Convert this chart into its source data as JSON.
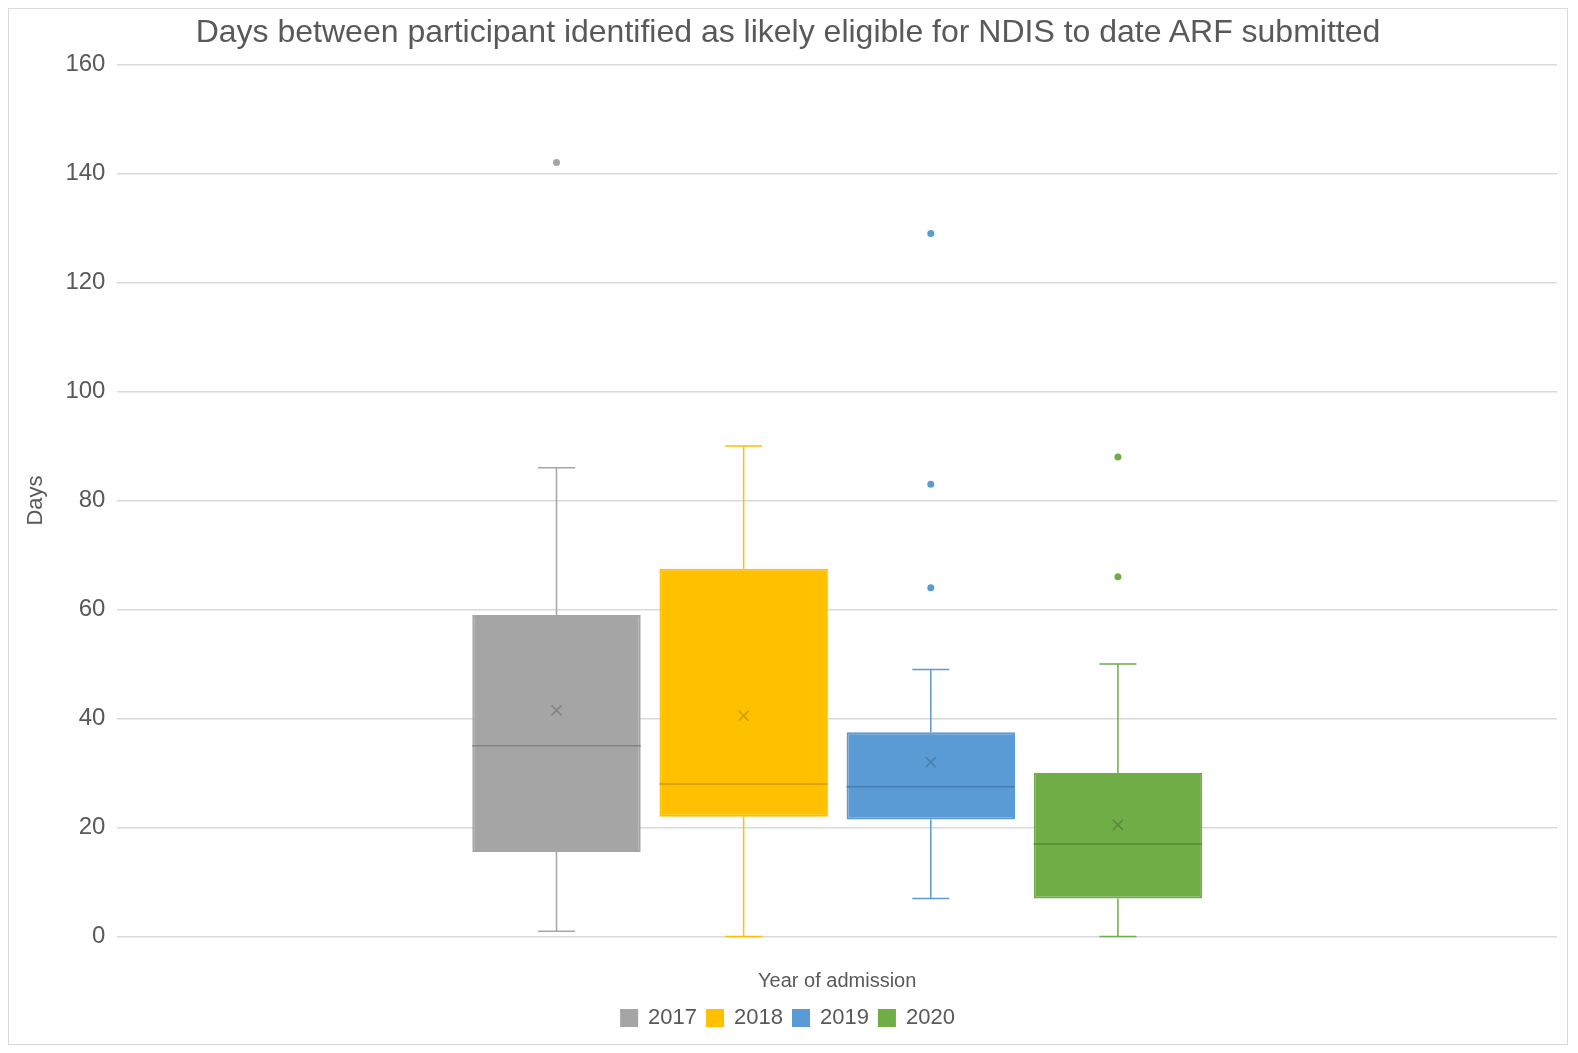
{
  "chart_data": {
    "type": "box",
    "title": "Days between participant identified as likely eligible for NDIS to date ARF submitted",
    "xlabel": "Year of admission",
    "ylabel": "Days",
    "categories": [
      null
    ],
    "ylim": [
      0,
      160
    ],
    "yticks": [
      0,
      20,
      40,
      60,
      80,
      100,
      120,
      140,
      160
    ],
    "grid": "y",
    "legend": "bottom",
    "series": [
      {
        "name": "2017",
        "color": "#a5a5a5",
        "boxes": [
          {
            "low": 1,
            "q1": 15.5,
            "median": 35,
            "q3": 59,
            "high": 86,
            "mean": 41.5,
            "outliers": [
              142
            ]
          }
        ]
      },
      {
        "name": "2018",
        "color": "#ffc000",
        "boxes": [
          {
            "low": 0,
            "q1": 22,
            "median": 28,
            "q3": 67.5,
            "high": 90,
            "mean": 40.5
          }
        ]
      },
      {
        "name": "2019",
        "color": "#5b9bd5",
        "boxes": [
          {
            "low": 7,
            "q1": 21.5,
            "median": 27.5,
            "q3": 37.5,
            "high": 49,
            "mean": 32,
            "outliers": [
              129,
              83,
              64
            ]
          }
        ]
      },
      {
        "name": "2020",
        "color": "#70ad47",
        "boxes": [
          {
            "low": 0,
            "q1": 7,
            "median": 17,
            "q3": 30,
            "high": 50,
            "mean": 20.5,
            "outliers": [
              88,
              66
            ]
          }
        ]
      }
    ]
  }
}
